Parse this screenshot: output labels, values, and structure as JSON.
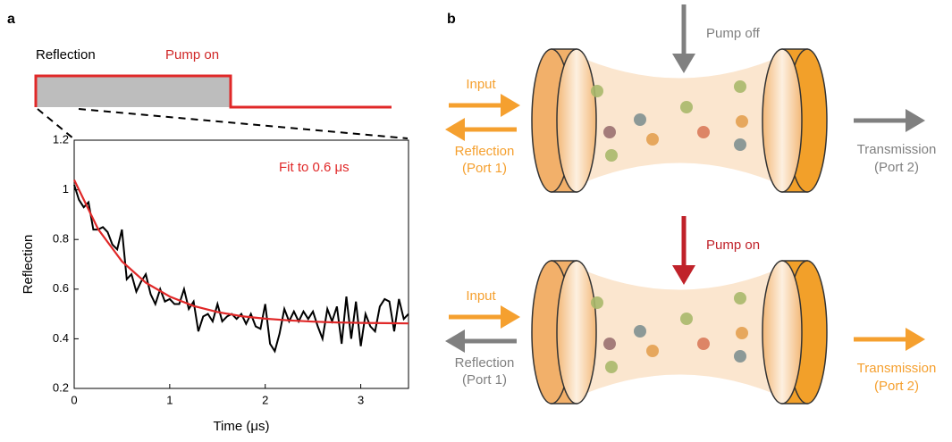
{
  "panel_labels": [
    "a",
    "b"
  ],
  "inset": {
    "reflection": "Reflection",
    "pump_on": "Pump on"
  },
  "chart_data": {
    "type": "line",
    "xlabel": "Time (μs)",
    "ylabel": "Reflection",
    "annotation": "Fit to 0.6 μs",
    "xlim": [
      0,
      3.5
    ],
    "ylim": [
      0.2,
      1.2
    ],
    "xticks": [
      0,
      1,
      2,
      3
    ],
    "yticks": [
      0.2,
      0.4,
      0.6,
      0.8,
      1,
      1.2
    ],
    "series": [
      {
        "color": "#000000",
        "x": [
          0,
          0.05,
          0.1,
          0.15,
          0.2,
          0.25,
          0.3,
          0.35,
          0.4,
          0.45,
          0.5,
          0.55,
          0.6,
          0.65,
          0.7,
          0.75,
          0.8,
          0.85,
          0.9,
          0.95,
          1.0,
          1.05,
          1.1,
          1.15,
          1.2,
          1.25,
          1.3,
          1.35,
          1.4,
          1.45,
          1.5,
          1.55,
          1.6,
          1.65,
          1.7,
          1.75,
          1.8,
          1.85,
          1.9,
          1.95,
          2.0,
          2.05,
          2.1,
          2.15,
          2.2,
          2.25,
          2.3,
          2.35,
          2.4,
          2.45,
          2.5,
          2.55,
          2.6,
          2.65,
          2.7,
          2.75,
          2.8,
          2.85,
          2.9,
          2.95,
          3.0,
          3.05,
          3.1,
          3.15,
          3.2,
          3.25,
          3.3,
          3.35,
          3.4,
          3.45,
          3.5
        ],
        "values": [
          1.02,
          0.96,
          0.93,
          0.95,
          0.84,
          0.84,
          0.85,
          0.83,
          0.78,
          0.76,
          0.84,
          0.64,
          0.66,
          0.59,
          0.63,
          0.66,
          0.58,
          0.54,
          0.6,
          0.55,
          0.56,
          0.54,
          0.54,
          0.6,
          0.52,
          0.55,
          0.43,
          0.49,
          0.5,
          0.47,
          0.54,
          0.47,
          0.49,
          0.5,
          0.48,
          0.5,
          0.46,
          0.5,
          0.45,
          0.44,
          0.54,
          0.38,
          0.35,
          0.42,
          0.52,
          0.47,
          0.51,
          0.47,
          0.51,
          0.48,
          0.51,
          0.45,
          0.4,
          0.52,
          0.47,
          0.53,
          0.38,
          0.57,
          0.4,
          0.55,
          0.37,
          0.5,
          0.45,
          0.43,
          0.53,
          0.56,
          0.55,
          0.43,
          0.56,
          0.48,
          0.5
        ]
      },
      {
        "color": "#e02828",
        "x": [
          0,
          0.25,
          0.5,
          0.75,
          1.0,
          1.25,
          1.5,
          1.75,
          2.0,
          2.25,
          2.5,
          2.75,
          3.0,
          3.25,
          3.5
        ],
        "values": [
          1.04,
          0.842,
          0.712,
          0.626,
          0.57,
          0.532,
          0.508,
          0.491,
          0.481,
          0.474,
          0.469,
          0.466,
          0.464,
          0.463,
          0.462
        ]
      }
    ]
  },
  "diagram": {
    "top": {
      "pump": "Pump off",
      "input": "Input",
      "reflection": [
        "Reflection",
        "(Port 1)"
      ],
      "transmission": [
        "Transmission",
        "(Port 2)"
      ]
    },
    "bottom": {
      "pump": "Pump on",
      "input": "Input",
      "reflection": [
        "Reflection",
        "(Port 1)"
      ],
      "transmission": [
        "Transmission",
        "(Port 2)"
      ]
    }
  }
}
